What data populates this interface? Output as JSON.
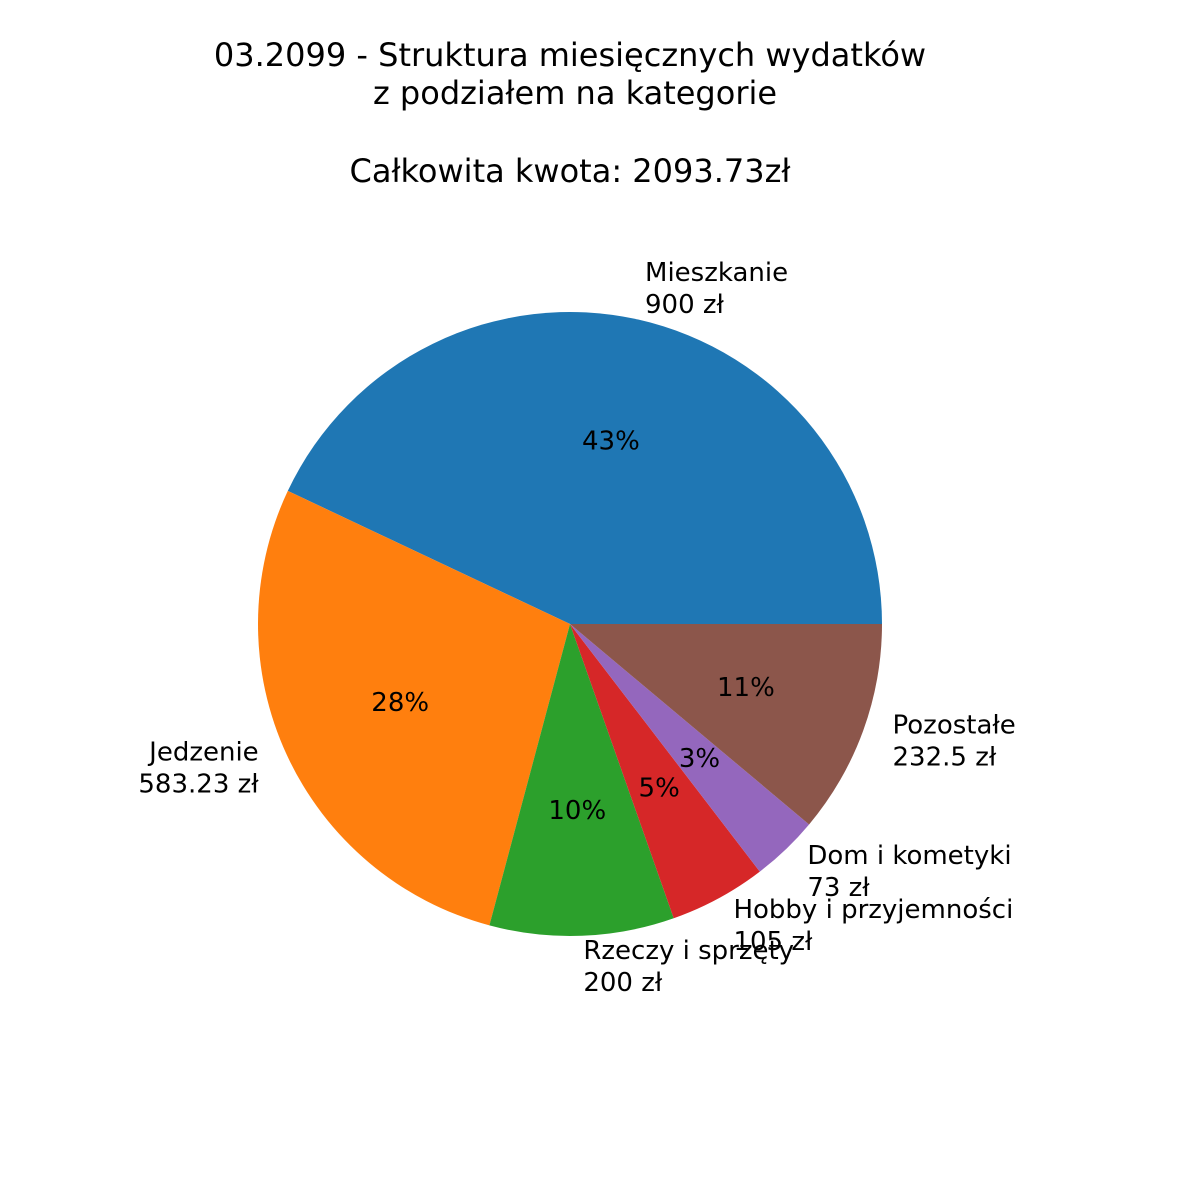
{
  "chart_data": {
    "type": "pie",
    "title_lines": [
      "03.2099 - Struktura miesięcznych wydatków",
      "z podziałem na kategorie",
      "",
      "Całkowita kwota: 2093.73zł"
    ],
    "slices": [
      {
        "name": "Mieszkanie",
        "value": 900,
        "value_label": "900 zł",
        "pct_label": "43%",
        "color": "#1f77b4"
      },
      {
        "name": "Jedzenie",
        "value": 583.23,
        "value_label": "583.23 zł",
        "pct_label": "28%",
        "color": "#ff7f0e"
      },
      {
        "name": "Rzeczy i sprzęty",
        "value": 200,
        "value_label": "200 zł",
        "pct_label": "10%",
        "color": "#2ca02c"
      },
      {
        "name": "Hobby i przyjemności",
        "value": 105,
        "value_label": "105 zł",
        "pct_label": "5%",
        "color": "#d62728"
      },
      {
        "name": "Dom i kometyki",
        "value": 73,
        "value_label": "73 zł",
        "pct_label": "3%",
        "color": "#9467bd"
      },
      {
        "name": "Pozostałe",
        "value": 232.5,
        "value_label": "232.5 zł",
        "pct_label": "11%",
        "color": "#8c564b"
      }
    ],
    "start_angle_deg": 0,
    "direction": "counterclockwise"
  }
}
